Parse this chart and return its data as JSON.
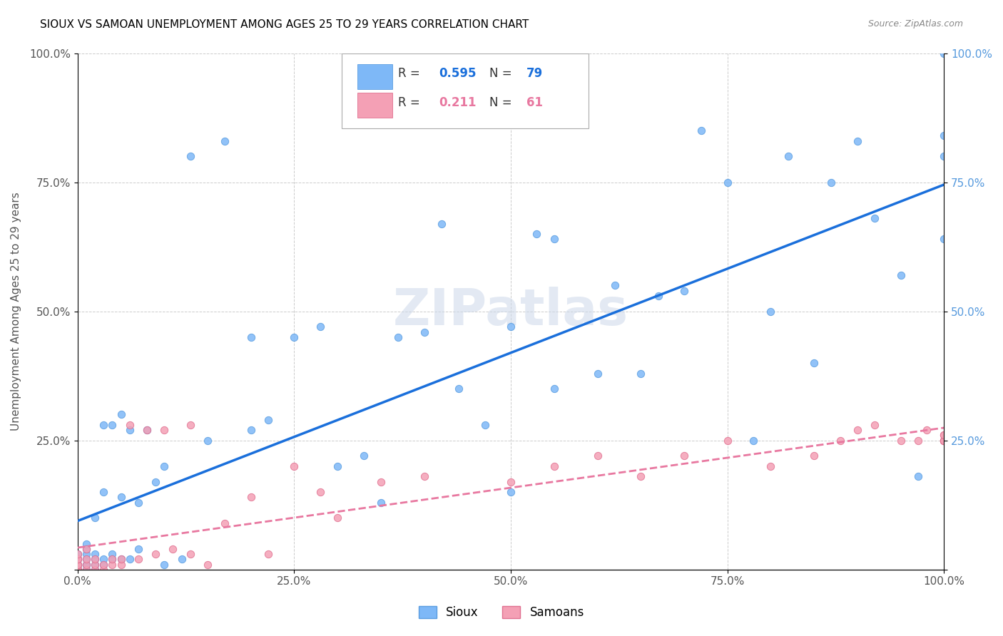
{
  "title": "SIOUX VS SAMOAN UNEMPLOYMENT AMONG AGES 25 TO 29 YEARS CORRELATION CHART",
  "source": "Source: ZipAtlas.com",
  "ylabel": "Unemployment Among Ages 25 to 29 years",
  "xlim": [
    0.0,
    1.0
  ],
  "ylim": [
    0.0,
    1.0
  ],
  "xticklabels": [
    "0.0%",
    "25.0%",
    "50.0%",
    "75.0%",
    "100.0%"
  ],
  "yticklabels_left": [
    "",
    "25.0%",
    "50.0%",
    "75.0%",
    "100.0%"
  ],
  "yticklabels_right": [
    "",
    "25.0%",
    "50.0%",
    "75.0%",
    "100.0%"
  ],
  "sioux_color": "#7eb8f7",
  "samoan_color": "#f4a0b5",
  "sioux_edge": "#5a9de0",
  "samoan_edge": "#e07090",
  "line_sioux_color": "#1a6fdb",
  "line_samoan_color": "#e878a0",
  "legend_r_sioux": "0.595",
  "legend_n_sioux": "79",
  "legend_r_samoan": "0.211",
  "legend_n_samoan": "61",
  "watermark": "ZIPatlas",
  "sioux_x": [
    0.0,
    0.0,
    0.0,
    0.0,
    0.0,
    0.0,
    0.0,
    0.01,
    0.01,
    0.01,
    0.01,
    0.01,
    0.01,
    0.01,
    0.02,
    0.02,
    0.02,
    0.02,
    0.02,
    0.03,
    0.03,
    0.03,
    0.03,
    0.04,
    0.04,
    0.04,
    0.05,
    0.05,
    0.05,
    0.06,
    0.06,
    0.07,
    0.07,
    0.08,
    0.09,
    0.1,
    0.1,
    0.12,
    0.13,
    0.15,
    0.17,
    0.2,
    0.2,
    0.22,
    0.25,
    0.28,
    0.3,
    0.33,
    0.35,
    0.37,
    0.4,
    0.42,
    0.44,
    0.47,
    0.5,
    0.5,
    0.53,
    0.55,
    0.55,
    0.6,
    0.62,
    0.65,
    0.67,
    0.7,
    0.72,
    0.75,
    0.78,
    0.8,
    0.82,
    0.85,
    0.87,
    0.9,
    0.92,
    0.95,
    0.97,
    1.0,
    1.0,
    1.0,
    1.0
  ],
  "sioux_y": [
    0.0,
    0.0,
    0.01,
    0.01,
    0.02,
    0.02,
    0.03,
    0.0,
    0.01,
    0.01,
    0.02,
    0.03,
    0.04,
    0.05,
    0.0,
    0.01,
    0.02,
    0.03,
    0.1,
    0.01,
    0.02,
    0.15,
    0.28,
    0.02,
    0.03,
    0.28,
    0.02,
    0.14,
    0.3,
    0.02,
    0.27,
    0.04,
    0.13,
    0.27,
    0.17,
    0.01,
    0.2,
    0.02,
    0.8,
    0.25,
    0.83,
    0.27,
    0.45,
    0.29,
    0.45,
    0.47,
    0.2,
    0.22,
    0.13,
    0.45,
    0.46,
    0.67,
    0.35,
    0.28,
    0.15,
    0.47,
    0.65,
    0.35,
    0.64,
    0.38,
    0.55,
    0.38,
    0.53,
    0.54,
    0.85,
    0.75,
    0.25,
    0.5,
    0.8,
    0.4,
    0.75,
    0.83,
    0.68,
    0.57,
    0.18,
    0.64,
    0.8,
    0.84,
    1.0
  ],
  "samoan_x": [
    0.0,
    0.0,
    0.0,
    0.0,
    0.0,
    0.0,
    0.0,
    0.0,
    0.0,
    0.0,
    0.01,
    0.01,
    0.01,
    0.01,
    0.02,
    0.02,
    0.02,
    0.03,
    0.03,
    0.04,
    0.04,
    0.05,
    0.05,
    0.06,
    0.07,
    0.08,
    0.09,
    0.1,
    0.11,
    0.13,
    0.13,
    0.15,
    0.17,
    0.2,
    0.22,
    0.25,
    0.28,
    0.3,
    0.35,
    0.4,
    0.5,
    0.55,
    0.6,
    0.65,
    0.7,
    0.75,
    0.8,
    0.85,
    0.88,
    0.9,
    0.92,
    0.95,
    0.97,
    0.98,
    1.0,
    1.0,
    1.0,
    1.0,
    1.0,
    1.0,
    1.0
  ],
  "samoan_y": [
    0.0,
    0.0,
    0.0,
    0.0,
    0.01,
    0.01,
    0.01,
    0.02,
    0.02,
    0.03,
    0.0,
    0.01,
    0.02,
    0.04,
    0.0,
    0.01,
    0.02,
    0.0,
    0.01,
    0.01,
    0.02,
    0.01,
    0.02,
    0.28,
    0.02,
    0.27,
    0.03,
    0.27,
    0.04,
    0.28,
    0.03,
    0.01,
    0.09,
    0.14,
    0.03,
    0.2,
    0.15,
    0.1,
    0.17,
    0.18,
    0.17,
    0.2,
    0.22,
    0.18,
    0.22,
    0.25,
    0.2,
    0.22,
    0.25,
    0.27,
    0.28,
    0.25,
    0.25,
    0.27,
    0.25,
    0.25,
    0.25,
    0.25,
    0.25,
    0.26,
    0.26
  ]
}
